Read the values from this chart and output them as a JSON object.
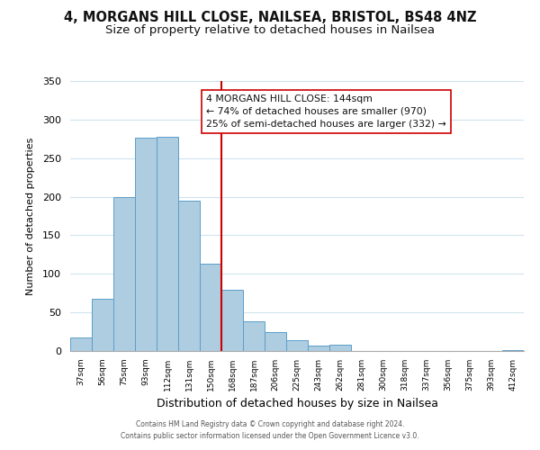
{
  "title": "4, MORGANS HILL CLOSE, NAILSEA, BRISTOL, BS48 4NZ",
  "subtitle": "Size of property relative to detached houses in Nailsea",
  "xlabel": "Distribution of detached houses by size in Nailsea",
  "ylabel": "Number of detached properties",
  "bar_labels": [
    "37sqm",
    "56sqm",
    "75sqm",
    "93sqm",
    "112sqm",
    "131sqm",
    "150sqm",
    "168sqm",
    "187sqm",
    "206sqm",
    "225sqm",
    "243sqm",
    "262sqm",
    "281sqm",
    "300sqm",
    "318sqm",
    "337sqm",
    "356sqm",
    "375sqm",
    "393sqm",
    "412sqm"
  ],
  "bar_values": [
    18,
    68,
    200,
    277,
    278,
    195,
    113,
    79,
    39,
    24,
    14,
    7,
    8,
    0,
    0,
    0,
    0,
    0,
    0,
    0,
    1
  ],
  "bar_color": "#aecde1",
  "bar_edge_color": "#5b9ec9",
  "ylim": [
    0,
    350
  ],
  "yticks": [
    0,
    50,
    100,
    150,
    200,
    250,
    300,
    350
  ],
  "vline_x": 6.5,
  "vline_color": "#cc0000",
  "annotation_text": "4 MORGANS HILL CLOSE: 144sqm\n← 74% of detached houses are smaller (970)\n25% of semi-detached houses are larger (332) →",
  "annotation_box_color": "#ffffff",
  "annotation_box_edge": "#cc0000",
  "footer_line1": "Contains HM Land Registry data © Crown copyright and database right 2024.",
  "footer_line2": "Contains public sector information licensed under the Open Government Licence v3.0.",
  "bg_color": "#ffffff",
  "grid_color": "#d0e4f0",
  "title_fontsize": 10.5,
  "subtitle_fontsize": 9.5
}
